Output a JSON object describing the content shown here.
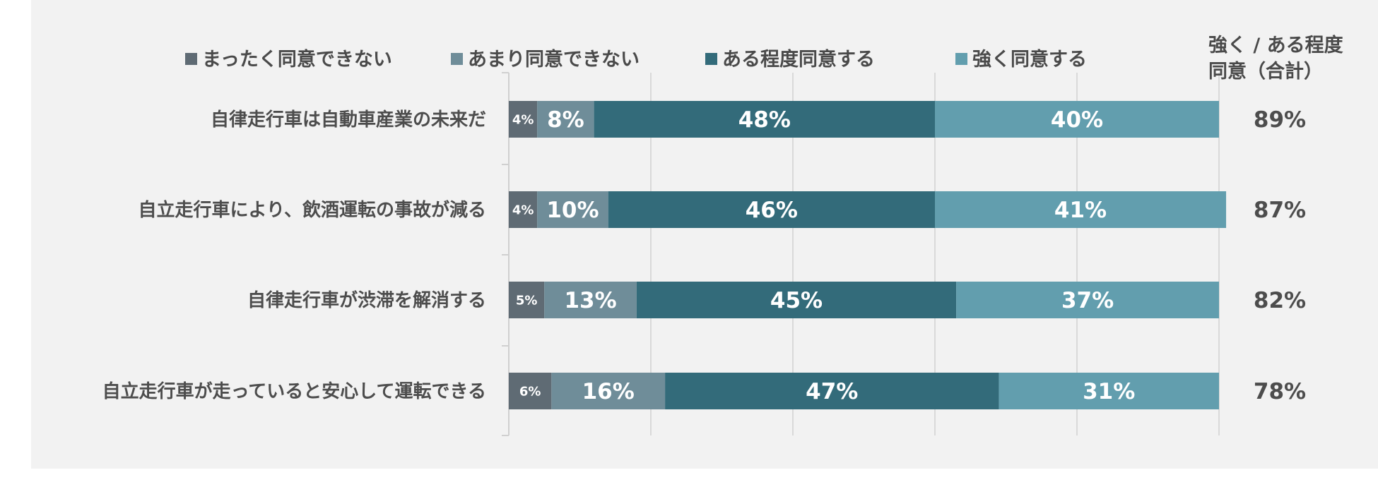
{
  "chart_data": {
    "type": "bar",
    "orientation": "horizontal",
    "stacked": true,
    "normalized": true,
    "categories": [
      "自律走行車は自動車産業の未来だ",
      "自立走行車により、飲酒運転の事故が減る",
      "自律走行車が渋滞を解消する",
      "自立走行車が走っていると安心して運転できる"
    ],
    "series": [
      {
        "name": "まったく同意できない",
        "color": "#5f6b74",
        "values": [
          4,
          4,
          5,
          6
        ]
      },
      {
        "name": "あまり同意できない",
        "color": "#6f8d99",
        "values": [
          8,
          10,
          13,
          16
        ]
      },
      {
        "name": "ある程度同意する",
        "color": "#336b7a",
        "values": [
          48,
          46,
          45,
          47
        ]
      },
      {
        "name": "強く同意する",
        "color": "#629eae",
        "values": [
          40,
          41,
          37,
          31
        ]
      }
    ],
    "total_header": [
      "強く / ある程度",
      "同意（合計）"
    ],
    "totals": [
      "89%",
      "87%",
      "82%",
      "78%"
    ],
    "xlim": [
      0,
      100
    ],
    "gridlines": true,
    "legend_position": "top"
  }
}
